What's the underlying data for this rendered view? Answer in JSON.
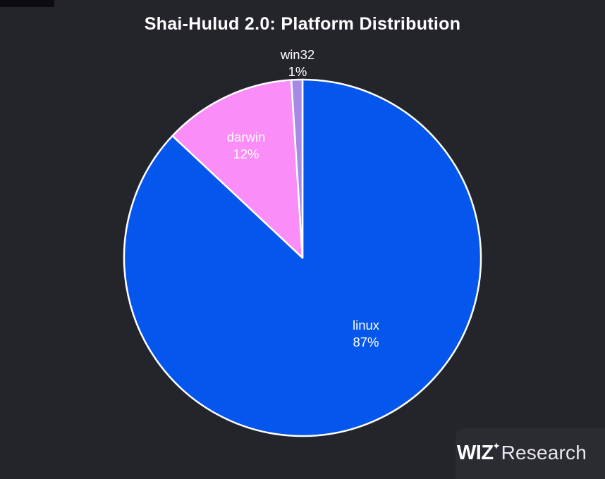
{
  "page": {
    "background_color": "#24242b",
    "title": "Shai-Hulud 2.0: Platform Distribution"
  },
  "chart_data": {
    "type": "pie",
    "title": "Shai-Hulud 2.0: Platform Distribution",
    "start_angle_deg": 0,
    "direction": "clockwise",
    "slices": [
      {
        "label": "linux",
        "value": 87,
        "pct_label": "87%",
        "color": "#0556ec",
        "label_placement": "inside"
      },
      {
        "label": "darwin",
        "value": 12,
        "pct_label": "12%",
        "color": "#fb8df8",
        "label_placement": "inside"
      },
      {
        "label": "win32",
        "value": 1,
        "pct_label": "1%",
        "color": "#a78ae6",
        "label_placement": "outside"
      }
    ],
    "slice_border_color": "#ffffff",
    "label_color": "#ffffff",
    "legend": "none"
  },
  "branding": {
    "logo_bold": "WIZ",
    "logo_regular": "Research",
    "sparkle_icon": "four-point-star",
    "logo_color": "#ffffff"
  }
}
